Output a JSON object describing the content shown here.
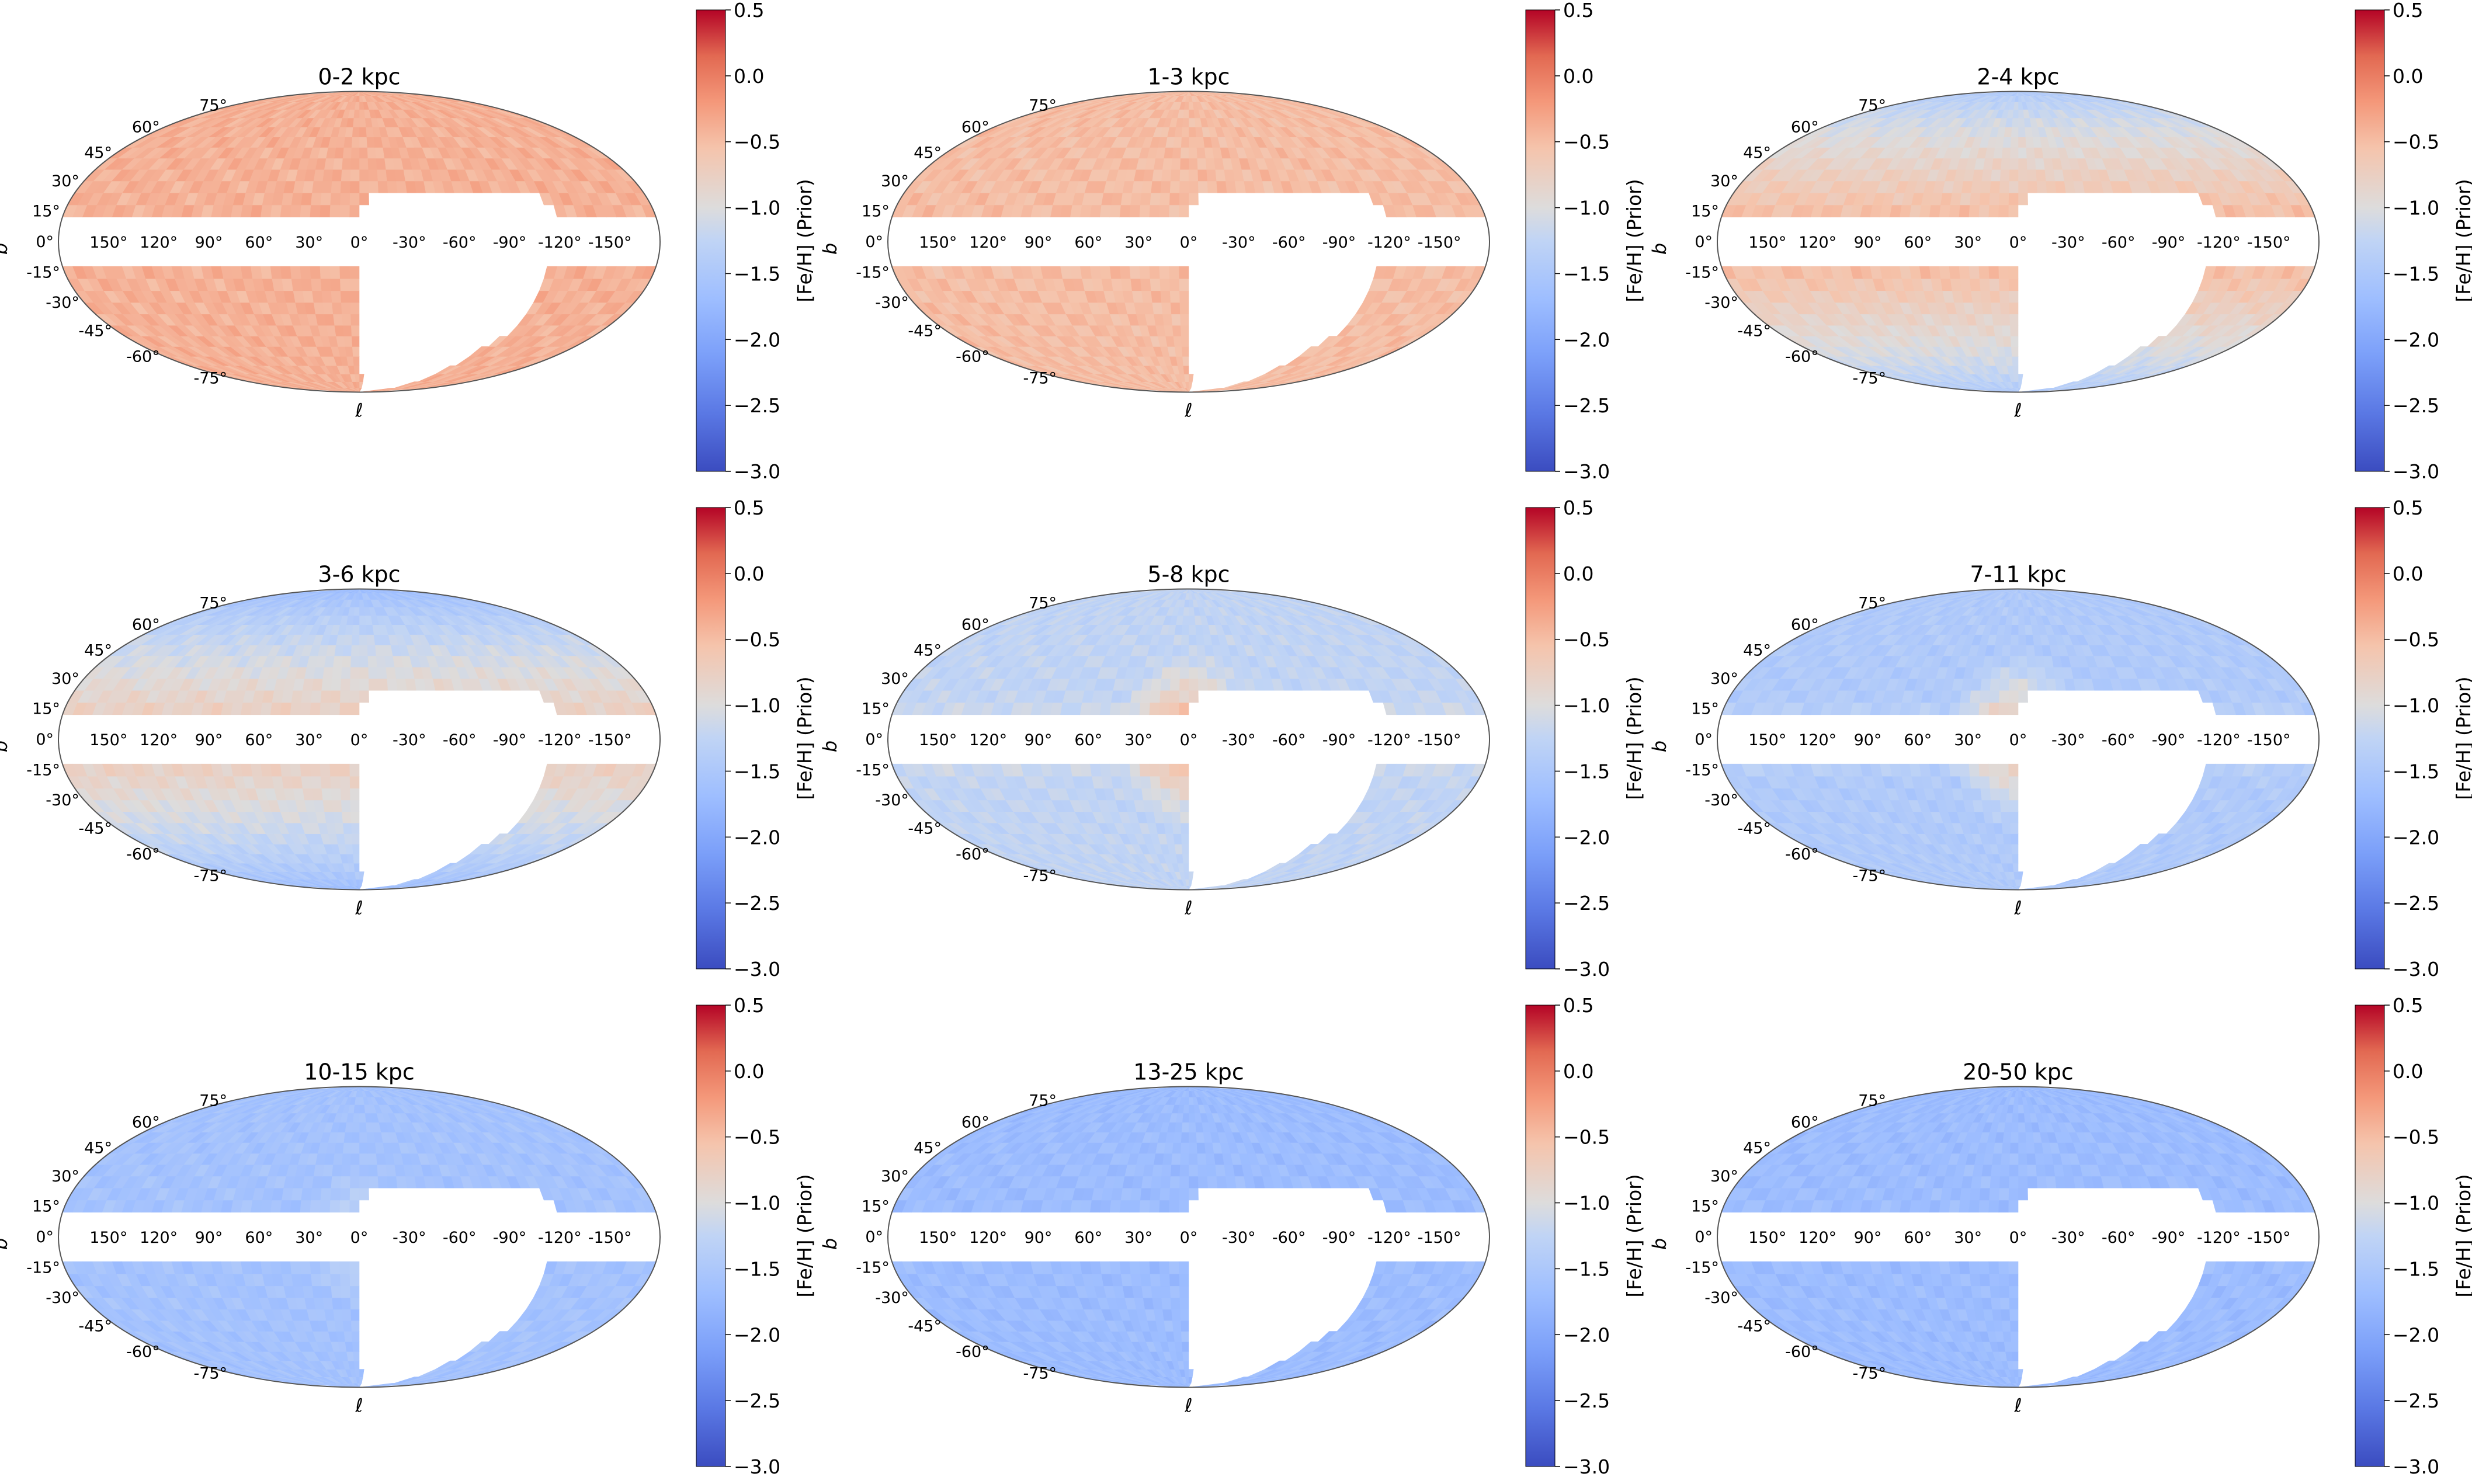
{
  "figure": {
    "panels": [
      {
        "title": "0-2 kpc"
      },
      {
        "title": "1-3 kpc"
      },
      {
        "title": "2-4 kpc"
      },
      {
        "title": "3-6 kpc"
      },
      {
        "title": "5-8 kpc"
      },
      {
        "title": "7-11 kpc"
      },
      {
        "title": "10-15 kpc"
      },
      {
        "title": "13-25 kpc"
      },
      {
        "title": "20-50 kpc"
      }
    ],
    "xlabel": "ℓ",
    "ylabel": "b",
    "lon_ticks": [
      "-150°",
      "-120°",
      "-90°",
      "-60°",
      "-30°",
      "0°",
      "30°",
      "60°",
      "90°",
      "120°",
      "150°"
    ],
    "lat_ticks": [
      "75°",
      "60°",
      "45°",
      "30°",
      "15°",
      "0°",
      "-15°",
      "-30°",
      "-45°",
      "-60°",
      "-75°"
    ],
    "colorbar": {
      "label": "[Fe/H] (Prior)",
      "ticks": [
        "0.5",
        "0.0",
        "−0.5",
        "−1.0",
        "−1.5",
        "−2.0",
        "−2.5",
        "−3.0"
      ],
      "range": [
        -3.0,
        0.5
      ],
      "colormap": "coolwarm",
      "colors": {
        "low": "#3b4cc0",
        "mid": "#dddddd",
        "high": "#b40426"
      }
    }
  },
  "chart_data": {
    "type": "heatmap",
    "projection": "mollweide",
    "coordinates": "galactic",
    "x_axis": "ℓ",
    "y_axis": "b",
    "lon_range": [
      -180,
      180
    ],
    "lat_range": [
      -90,
      90
    ],
    "masked_regions": [
      "low-latitude band |b| < 10°",
      "region roughly ℓ -120° to 0°, b below +27°"
    ],
    "value_label": "[Fe/H] (Prior)",
    "vmin": -3.0,
    "vmax": 0.5,
    "panels": [
      {
        "title": "0-2 kpc",
        "distance_kpc": [
          0,
          2
        ],
        "approx_feh": -0.4,
        "pattern": "uniform"
      },
      {
        "title": "1-3 kpc",
        "distance_kpc": [
          1,
          3
        ],
        "approx_feh": -0.5,
        "pattern": "uniform"
      },
      {
        "title": "2-4 kpc",
        "distance_kpc": [
          2,
          4
        ],
        "approx_feh": -0.65,
        "pattern": "disk-to-halo gradient"
      },
      {
        "title": "3-6 kpc",
        "distance_kpc": [
          3,
          6
        ],
        "approx_feh": -0.9,
        "pattern": "disk-to-halo gradient"
      },
      {
        "title": "5-8 kpc",
        "distance_kpc": [
          5,
          8
        ],
        "approx_feh": -1.25,
        "pattern": "metal-poor halo with central bulge"
      },
      {
        "title": "7-11 kpc",
        "distance_kpc": [
          7,
          11
        ],
        "approx_feh": -1.45,
        "pattern": "metal-poor halo with central bulge"
      },
      {
        "title": "10-15 kpc",
        "distance_kpc": [
          10,
          15
        ],
        "approx_feh": -1.6,
        "pattern": "metal-poor halo with weak centre"
      },
      {
        "title": "13-25 kpc",
        "distance_kpc": [
          13,
          25
        ],
        "approx_feh": -1.7,
        "pattern": "uniform halo"
      },
      {
        "title": "20-50 kpc",
        "distance_kpc": [
          20,
          50
        ],
        "approx_feh": -1.7,
        "pattern": "uniform halo"
      }
    ]
  }
}
